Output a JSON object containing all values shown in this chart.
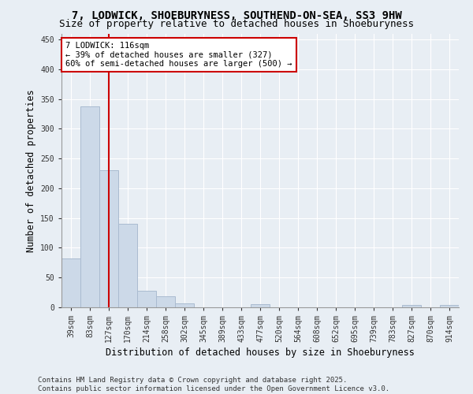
{
  "title_line1": "7, LODWICK, SHOEBURYNESS, SOUTHEND-ON-SEA, SS3 9HW",
  "title_line2": "Size of property relative to detached houses in Shoeburyness",
  "xlabel": "Distribution of detached houses by size in Shoeburyness",
  "ylabel": "Number of detached properties",
  "bin_labels": [
    "39sqm",
    "83sqm",
    "127sqm",
    "170sqm",
    "214sqm",
    "258sqm",
    "302sqm",
    "345sqm",
    "389sqm",
    "433sqm",
    "477sqm",
    "520sqm",
    "564sqm",
    "608sqm",
    "652sqm",
    "695sqm",
    "739sqm",
    "783sqm",
    "827sqm",
    "870sqm",
    "914sqm"
  ],
  "bar_values": [
    82,
    337,
    230,
    140,
    28,
    18,
    7,
    0,
    0,
    0,
    5,
    0,
    0,
    0,
    0,
    0,
    0,
    0,
    4,
    0,
    4
  ],
  "bar_color": "#ccd9e8",
  "bar_edge_color": "#aabbd0",
  "vline_x": 2.0,
  "vline_color": "#cc0000",
  "annotation_text": "7 LODWICK: 116sqm\n← 39% of detached houses are smaller (327)\n60% of semi-detached houses are larger (500) →",
  "annotation_box_color": "#ffffff",
  "annotation_box_edge": "#cc0000",
  "ylim": [
    0,
    460
  ],
  "yticks": [
    0,
    50,
    100,
    150,
    200,
    250,
    300,
    350,
    400,
    450
  ],
  "footer_text": "Contains HM Land Registry data © Crown copyright and database right 2025.\nContains public sector information licensed under the Open Government Licence v3.0.",
  "bg_color": "#e8eef4",
  "plot_bg_color": "#e8eef4",
  "grid_color": "#ffffff",
  "title_fontsize": 10,
  "subtitle_fontsize": 9,
  "axis_label_fontsize": 8.5,
  "tick_fontsize": 7,
  "annotation_fontsize": 7.5,
  "footer_fontsize": 6.5
}
